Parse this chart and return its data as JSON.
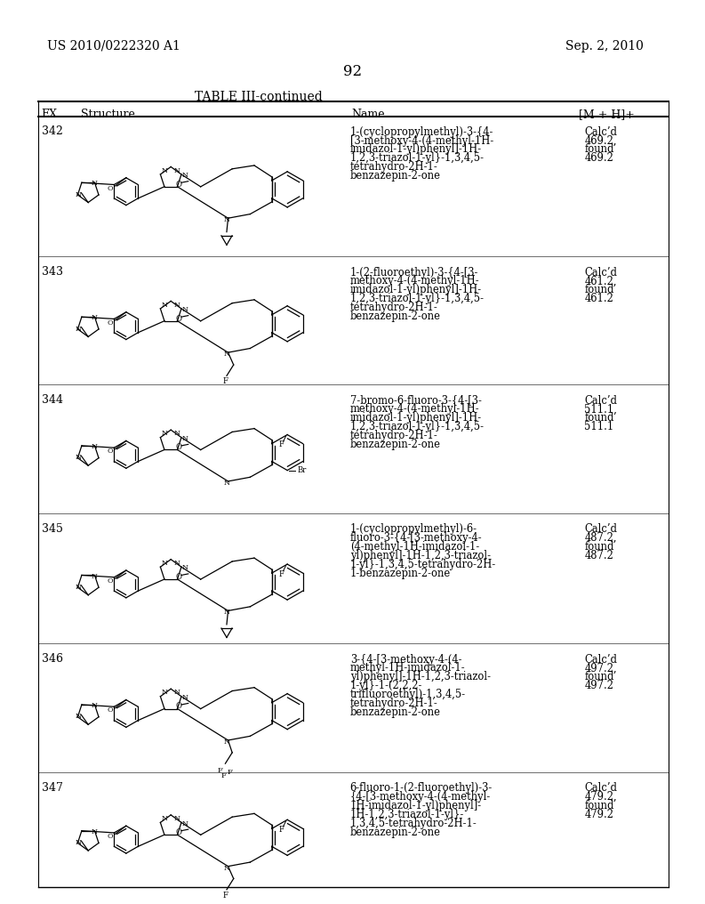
{
  "patent_number": "US 2010/0222320 A1",
  "date": "Sep. 2, 2010",
  "page_number": "92",
  "table_title": "TABLE III-continued",
  "headers": [
    "EX.",
    "Structure",
    "Name",
    "[M + H]+"
  ],
  "rows": [
    {
      "ex": "342",
      "name_lines": [
        "1-(cyclopropylmethyl)-3-{4-",
        "[3-methoxy-4-(4-methyl-1H-",
        "imidazol-1-yl)phenyl]-1H-",
        "1,2,3-triazol-1-yl}-1,3,4,5-",
        "tetrahydro-2H-1-",
        "benzazepin-2-one"
      ],
      "mh_lines": [
        "Calc’d",
        "469.2,",
        "found",
        "469.2"
      ],
      "n_group": "cyclopropylmethyl",
      "benz_f": false,
      "benz_br": false
    },
    {
      "ex": "343",
      "name_lines": [
        "1-(2-fluoroethyl)-3-{4-[3-",
        "methoxy-4-(4-methyl-1H-",
        "imidazol-1-yl)phenyl]-1H-",
        "1,2,3-triazol-1-yl}-1,3,4,5-",
        "tetrahydro-2H-1-",
        "benzazepin-2-one"
      ],
      "mh_lines": [
        "Calc’d",
        "461.2,",
        "found",
        "461.2"
      ],
      "n_group": "fluoroethyl",
      "benz_f": false,
      "benz_br": false
    },
    {
      "ex": "344",
      "name_lines": [
        "7-bromo-6-fluoro-3-{4-[3-",
        "methoxy-4-(4-methyl-1H-",
        "imidazol-1-yl)phenyl]-1H-",
        "1,2,3-triazol-1-yl}-1,3,4,5-",
        "tetrahydro-2H-1-",
        "benzazepin-2-one"
      ],
      "mh_lines": [
        "Calc’d",
        "511.1,",
        "found",
        "511.1"
      ],
      "n_group": "none",
      "benz_f": true,
      "benz_br": true
    },
    {
      "ex": "345",
      "name_lines": [
        "1-(cyclopropylmethyl)-6-",
        "fluoro-3-{4-[3-methoxy-4-",
        "(4-methyl-1H-imidazol-1-",
        "yl)phenyl]-1H-1,2,3-triazol-",
        "1-yl}-1,3,4,5-tetrahydro-2H-",
        "1-benzazepin-2-one"
      ],
      "mh_lines": [
        "Calc’d",
        "487.2,",
        "found",
        "487.2"
      ],
      "n_group": "cyclopropylmethyl",
      "benz_f": true,
      "benz_br": false
    },
    {
      "ex": "346",
      "name_lines": [
        "3-{4-[3-methoxy-4-(4-",
        "methyl-1H-imidazol-1-",
        "yl)phenyl]-1H-1,2,3-triazol-",
        "1-yl}-1-(2,2,2-",
        "trifluoroethyl)-1,3,4,5-",
        "tetrahydro-2H-1-",
        "benzazepin-2-one"
      ],
      "mh_lines": [
        "Calc’d",
        "497.2,",
        "found",
        "497.2"
      ],
      "n_group": "trifluoroethyl",
      "benz_f": false,
      "benz_br": false
    },
    {
      "ex": "347",
      "name_lines": [
        "6-fluoro-1-(2-fluoroethyl)-3-",
        "{4-[3-methoxy-4-(4-methyl-",
        "1H-imidazol-1-yl)phenyl]-",
        "1H-1,2,3-triazol-1-yl}-",
        "1,3,4,5-tetrahydro-2H-1-",
        "benzazepin-2-one"
      ],
      "mh_lines": [
        "Calc’d",
        "479.2,",
        "found",
        "479.2"
      ],
      "n_group": "fluoroethyl",
      "benz_f": true,
      "benz_br": false
    }
  ],
  "row_tops": [
    170,
    375,
    562,
    750,
    940,
    1128,
    1295
  ],
  "struct_cy_list": [
    272,
    468,
    656,
    845,
    1034,
    1218
  ]
}
